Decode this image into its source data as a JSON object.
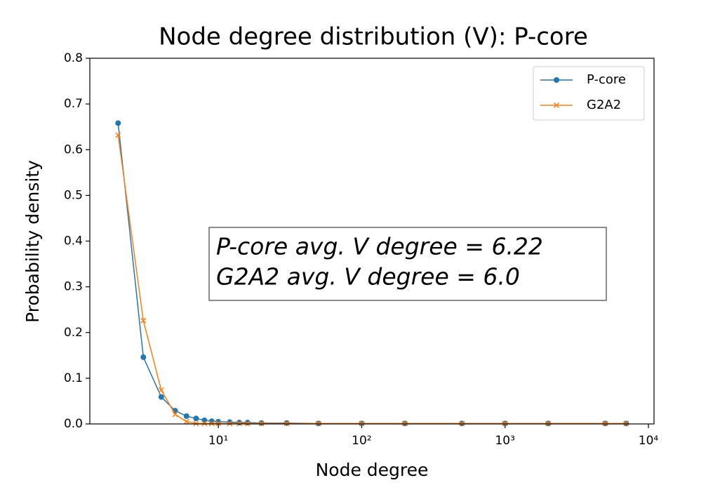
{
  "chart_data": {
    "type": "line",
    "title": "Node degree distribution (V): P-core",
    "x_label": "Node degree",
    "y_label": "Probability density",
    "x": [
      2,
      3,
      4,
      5,
      6,
      7,
      8,
      9,
      10,
      12,
      14,
      16,
      20,
      30,
      50,
      100,
      200,
      500,
      1000,
      2000,
      5000,
      7000
    ],
    "series": [
      {
        "name": "P-core",
        "color": "#1f77b4",
        "marker": "circle",
        "values": [
          0.658,
          0.146,
          0.059,
          0.029,
          0.017,
          0.012,
          0.008,
          0.006,
          0.005,
          0.004,
          0.003,
          0.003,
          0.002,
          0.002,
          0.001,
          0.001,
          0.001,
          0.001,
          0.001,
          0.001,
          0.001,
          0.001
        ]
      },
      {
        "name": "G2A2",
        "color": "#ff7f0e",
        "marker": "x",
        "values": [
          0.632,
          0.226,
          0.074,
          0.021,
          0.005,
          0.001,
          0.001,
          0.001,
          0.001,
          0.001,
          0.001,
          0.001,
          0.001,
          0.001,
          0.001,
          0.001,
          0.001,
          0.001,
          0.001,
          0.001,
          0.001,
          0.001
        ]
      }
    ],
    "xscale": "log",
    "xlim": [
      1.27,
      10940
    ],
    "xticks": [
      {
        "value": 10,
        "label": "10¹"
      },
      {
        "value": 100,
        "label": "10²"
      },
      {
        "value": 1000,
        "label": "10³"
      },
      {
        "value": 10000,
        "label": "10⁴"
      }
    ],
    "ylim": [
      0,
      0.8
    ],
    "yticks": [
      {
        "value": 0,
        "label": "0.0"
      },
      0.1,
      0.2,
      0.3,
      0.4,
      0.5,
      0.6,
      0.7,
      0.8
    ],
    "legend": "upper right",
    "annotation": [
      "P-core avg. V degree = 6.22",
      "G2A2 avg. V degree = 6.0"
    ]
  }
}
